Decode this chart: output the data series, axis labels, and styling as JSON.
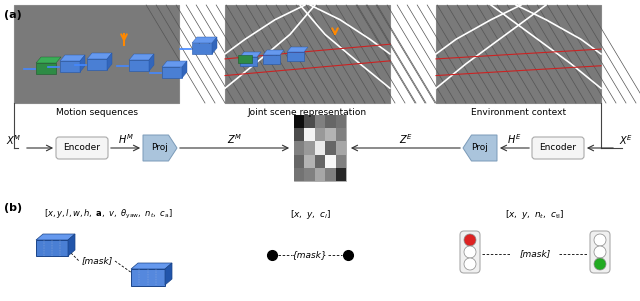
{
  "fig_width": 6.4,
  "fig_height": 3.01,
  "bg_gray": "#7a7a7a",
  "encoder_label": "Encoder",
  "proj_label": "Proj",
  "matrix_vals": [
    [
      0.95,
      0.7,
      0.5,
      0.6,
      0.55
    ],
    [
      0.7,
      0.05,
      0.4,
      0.3,
      0.5
    ],
    [
      0.5,
      0.4,
      0.08,
      0.6,
      0.35
    ],
    [
      0.6,
      0.3,
      0.6,
      0.03,
      0.5
    ],
    [
      0.55,
      0.5,
      0.35,
      0.5,
      0.85
    ]
  ]
}
